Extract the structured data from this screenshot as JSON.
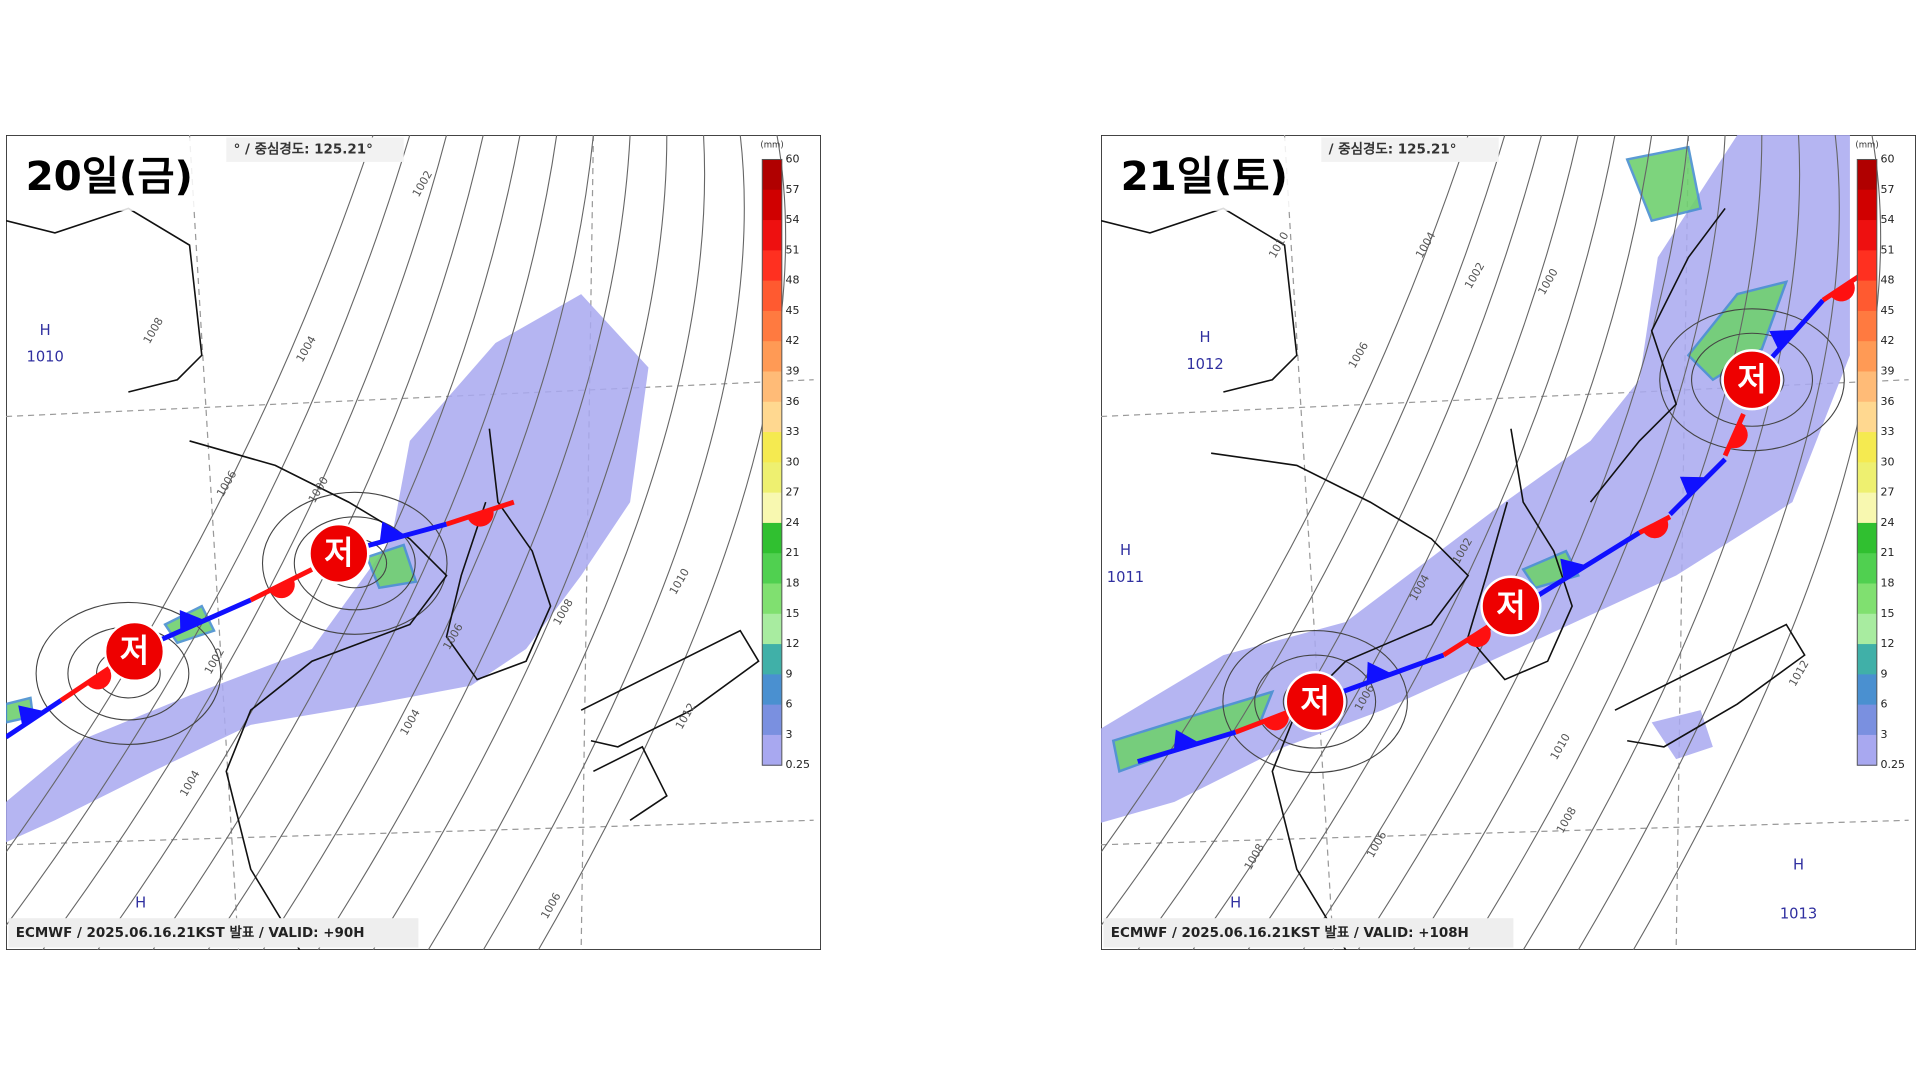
{
  "panels": [
    {
      "title": "20일(금)",
      "header": "° / 중심경도: 125.21°",
      "footer": "ECMWF / 2025.06.16.21KST 발표 / VALID: +90H",
      "lows": [
        "저",
        "저"
      ],
      "highs": [
        {
          "symbol": "H",
          "pressure": "1010"
        },
        {
          "symbol": "H"
        }
      ],
      "isobar_labels": [
        "1002",
        "1004",
        "1006",
        "1008",
        "1000",
        "1002",
        "1004",
        "1006",
        "1008",
        "1010",
        "1012",
        "1004",
        "1006"
      ]
    },
    {
      "title": "21일(토)",
      "header": "/ 중심경도: 125.21°",
      "footer": "ECMWF / 2025.06.16.21KST 발표 / VALID: +108H",
      "lows": [
        "저",
        "저",
        "저"
      ],
      "highs": [
        {
          "symbol": "H",
          "pressure": "1012"
        },
        {
          "symbol": "H",
          "pressure": "1011"
        },
        {
          "symbol": "H",
          "pressure": "1013"
        },
        {
          "symbol": "H"
        }
      ],
      "isobar_labels": [
        "1010",
        "1004",
        "1002",
        "1000",
        "1006",
        "1002",
        "1004",
        "1006",
        "1008",
        "1010",
        "1012",
        "1006",
        "1008"
      ]
    }
  ],
  "colorbar": {
    "unit": "(mm)",
    "ticks": [
      60,
      57,
      54,
      51,
      48,
      45,
      42,
      39,
      36,
      33,
      30,
      27,
      24,
      21,
      18,
      15,
      12,
      9,
      6,
      3,
      0.25
    ],
    "colors": [
      "#b00000",
      "#d00000",
      "#ee1010",
      "#ff3020",
      "#ff5a30",
      "#ff7a40",
      "#ff9a55",
      "#ffbb77",
      "#ffd890",
      "#f5ea50",
      "#eef070",
      "#f8f8b0",
      "#30c030",
      "#50d050",
      "#80e070",
      "#a8eca0",
      "#40b0a8",
      "#4a90d0",
      "#7a90e0",
      "#a8a8f0"
    ]
  }
}
